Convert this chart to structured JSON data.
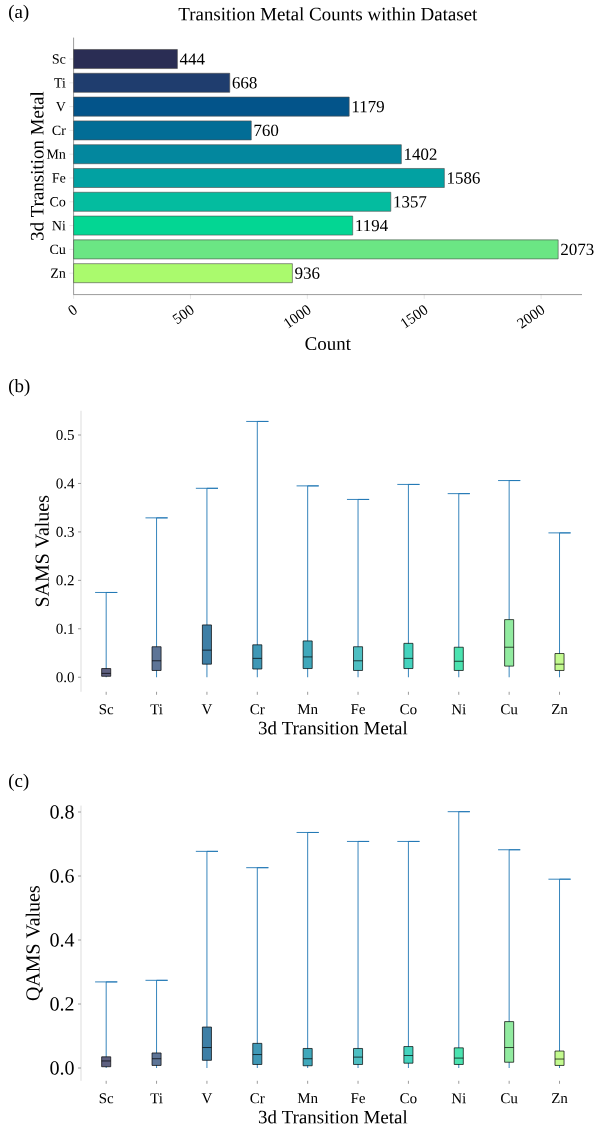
{
  "chart_data": [
    {
      "type": "bar",
      "orientation": "horizontal",
      "title": "Transition Metal Counts within Dataset",
      "xlabel": "Count",
      "ylabel": "3d Transition Metal",
      "categories": [
        "Sc",
        "Ti",
        "V",
        "Cr",
        "Mn",
        "Fe",
        "Co",
        "Ni",
        "Cu",
        "Zn"
      ],
      "values": [
        444,
        668,
        1179,
        760,
        1402,
        1586,
        1357,
        1194,
        2073,
        936
      ],
      "colors": [
        "#2a2d54",
        "#1f3d6e",
        "#03548a",
        "#026d96",
        "#03879e",
        "#02a1a2",
        "#04bc9f",
        "#03d693",
        "#6be684",
        "#aafa6d"
      ],
      "xlim": [
        0,
        2175
      ],
      "xticks": [
        0,
        500,
        1000,
        1500,
        2000
      ],
      "data_labels": true,
      "annotations": [
        "(a)"
      ]
    },
    {
      "type": "box",
      "xlabel": "3d Transition Metal",
      "ylabel": "SAMS Values",
      "categories": [
        "Sc",
        "Ti",
        "V",
        "Cr",
        "Mn",
        "Fe",
        "Co",
        "Ni",
        "Cu",
        "Zn"
      ],
      "colors": [
        "#5e6080",
        "#5e7597",
        "#3e7fa6",
        "#3f98b6",
        "#40a8bb",
        "#4ebfc2",
        "#44d3be",
        "#4be3b0",
        "#92eba0",
        "#c3fa8f"
      ],
      "boxes": [
        {
          "low": 0,
          "q1": 0.002,
          "median": 0.008,
          "q3": 0.018,
          "high": 0.175
        },
        {
          "low": 0,
          "q1": 0.014,
          "median": 0.034,
          "q3": 0.063,
          "high": 0.329
        },
        {
          "low": 0,
          "q1": 0.027,
          "median": 0.056,
          "q3": 0.108,
          "high": 0.39
        },
        {
          "low": 0,
          "q1": 0.017,
          "median": 0.039,
          "q3": 0.067,
          "high": 0.528
        },
        {
          "low": 0,
          "q1": 0.018,
          "median": 0.042,
          "q3": 0.075,
          "high": 0.395
        },
        {
          "low": 0,
          "q1": 0.014,
          "median": 0.034,
          "q3": 0.063,
          "high": 0.367
        },
        {
          "low": 0,
          "q1": 0.018,
          "median": 0.039,
          "q3": 0.07,
          "high": 0.398
        },
        {
          "low": 0,
          "q1": 0.014,
          "median": 0.033,
          "q3": 0.062,
          "high": 0.379
        },
        {
          "low": 0,
          "q1": 0.023,
          "median": 0.062,
          "q3": 0.119,
          "high": 0.406
        },
        {
          "low": 0,
          "q1": 0.014,
          "median": 0.027,
          "q3": 0.049,
          "high": 0.298
        }
      ],
      "ylim": [
        -0.03,
        0.55
      ],
      "yticks": [
        {
          "value": 0,
          "label": "0.0"
        },
        0.1,
        0.2,
        0.3,
        0.4,
        0.5
      ],
      "annotations": [
        "(b)"
      ]
    },
    {
      "type": "box",
      "xlabel": "3d Transition Metal",
      "ylabel": "QAMS Values",
      "categories": [
        "Sc",
        "Ti",
        "V",
        "Cr",
        "Mn",
        "Fe",
        "Co",
        "Ni",
        "Cu",
        "Zn"
      ],
      "colors": [
        "#5e6080",
        "#5e7597",
        "#3e7fa6",
        "#3f98b6",
        "#40a8bb",
        "#4ebfc2",
        "#44d3be",
        "#4be3b0",
        "#92eba0",
        "#c3fa8f"
      ],
      "boxes": [
        {
          "low": 0,
          "q1": 0.004,
          "median": 0.022,
          "q3": 0.035,
          "high": 0.269
        },
        {
          "low": 0,
          "q1": 0.008,
          "median": 0.029,
          "q3": 0.047,
          "high": 0.274
        },
        {
          "low": 0,
          "q1": 0.024,
          "median": 0.064,
          "q3": 0.128,
          "high": 0.677
        },
        {
          "low": 0,
          "q1": 0.011,
          "median": 0.042,
          "q3": 0.077,
          "high": 0.626
        },
        {
          "low": 0,
          "q1": 0.007,
          "median": 0.029,
          "q3": 0.061,
          "high": 0.736
        },
        {
          "low": 0,
          "q1": 0.011,
          "median": 0.034,
          "q3": 0.061,
          "high": 0.708
        },
        {
          "low": 0,
          "q1": 0.015,
          "median": 0.039,
          "q3": 0.067,
          "high": 0.708
        },
        {
          "low": 0,
          "q1": 0.011,
          "median": 0.031,
          "q3": 0.063,
          "high": 0.801
        },
        {
          "low": 0,
          "q1": 0.018,
          "median": 0.064,
          "q3": 0.145,
          "high": 0.682
        },
        {
          "low": 0,
          "q1": 0.008,
          "median": 0.028,
          "q3": 0.053,
          "high": 0.59
        }
      ],
      "ylim": [
        -0.04,
        0.82
      ],
      "yticks": [
        {
          "value": 0,
          "label": "0.0"
        },
        {
          "value": 0.2,
          "label": "0.2"
        },
        {
          "value": 0.4,
          "label": "0.4"
        },
        {
          "value": 0.6,
          "label": "0.6"
        },
        {
          "value": 0.8,
          "label": "0.8"
        }
      ],
      "annotations": [
        "(c)"
      ]
    }
  ]
}
